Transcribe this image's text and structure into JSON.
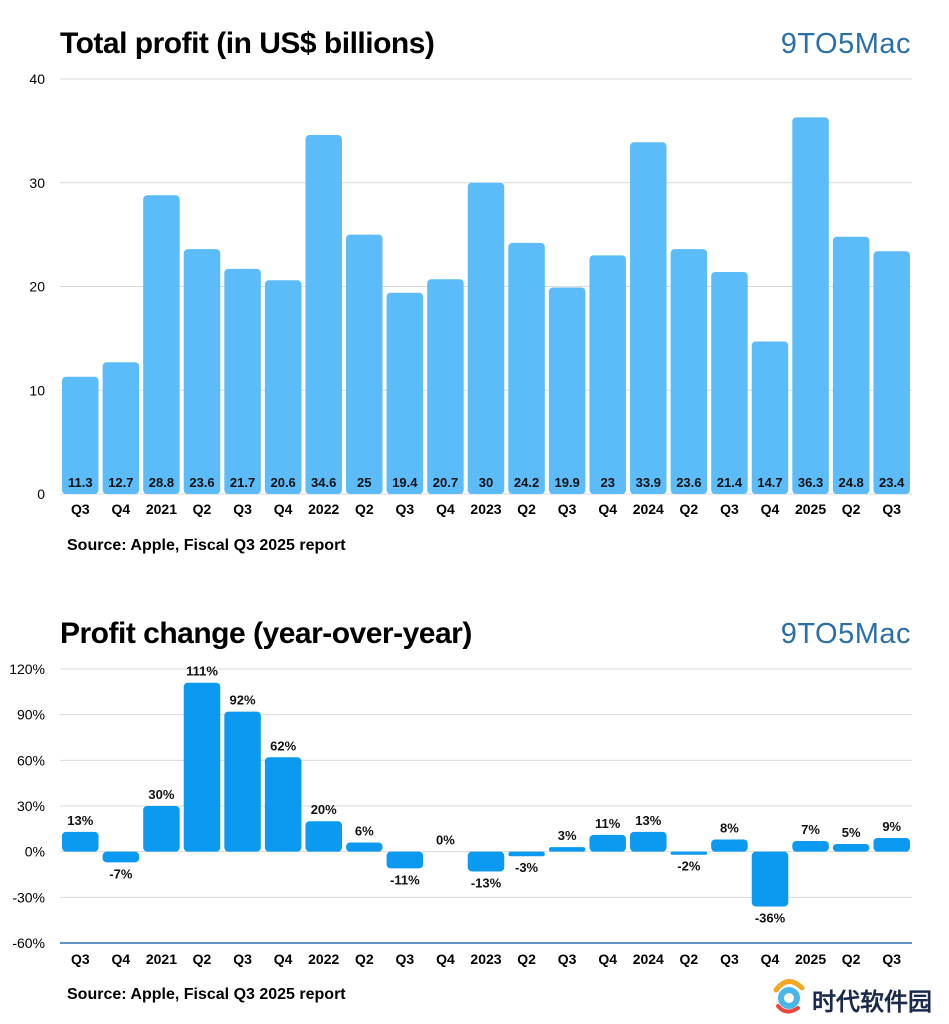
{
  "branding": {
    "name": "9TO5Mac",
    "primary_color": "#5cbcf9",
    "secondary_color": "#0b9af0",
    "brand_color": "#2a6fa8"
  },
  "watermark": {
    "text": "时代软件园"
  },
  "chart_data": [
    {
      "type": "bar",
      "title": "Total profit (in US$ billions)",
      "source": "Source: Apple, Fiscal Q3 2025 report",
      "categories": [
        "Q3",
        "Q4",
        "2021",
        "Q2",
        "Q3",
        "Q4",
        "2022",
        "Q2",
        "Q3",
        "Q4",
        "2023",
        "Q2",
        "Q3",
        "Q4",
        "2024",
        "Q2",
        "Q3",
        "Q4",
        "2025",
        "Q2",
        "Q3"
      ],
      "values": [
        11.3,
        12.7,
        28.8,
        23.6,
        21.7,
        20.6,
        34.6,
        25,
        19.4,
        20.7,
        30,
        24.2,
        19.9,
        23,
        33.9,
        23.6,
        21.4,
        14.7,
        36.3,
        24.8,
        23.4
      ],
      "value_labels": [
        "11.3",
        "12.7",
        "28.8",
        "23.6",
        "21.7",
        "20.6",
        "34.6",
        "25",
        "19.4",
        "20.7",
        "30",
        "24.2",
        "19.9",
        "23",
        "33.9",
        "23.6",
        "21.4",
        "14.7",
        "36.3",
        "24.8",
        "23.4"
      ],
      "ylim": [
        0,
        40
      ],
      "yticks": [
        0,
        10,
        20,
        30,
        40
      ],
      "ytick_labels": [
        "0",
        "10",
        "20",
        "30",
        "40"
      ],
      "grid": true,
      "color": "#5cbcf9",
      "data_label_position": "inside-bottom"
    },
    {
      "type": "bar",
      "title": "Profit change (year-over-year)",
      "source": "Source: Apple, Fiscal Q3 2025 report",
      "categories": [
        "Q3",
        "Q4",
        "2021",
        "Q2",
        "Q3",
        "Q4",
        "2022",
        "Q2",
        "Q3",
        "Q4",
        "2023",
        "Q2",
        "Q3",
        "Q4",
        "2024",
        "Q2",
        "Q3",
        "Q4",
        "2025",
        "Q2",
        "Q3"
      ],
      "values": [
        13,
        -7,
        30,
        111,
        92,
        62,
        20,
        6,
        -11,
        0,
        -13,
        -3,
        3,
        11,
        13,
        -2,
        8,
        -36,
        7,
        5,
        9
      ],
      "value_labels": [
        "13%",
        "-7%",
        "30%",
        "111%",
        "92%",
        "62%",
        "20%",
        "6%",
        "-11%",
        "0%",
        "-13%",
        "-3%",
        "3%",
        "11%",
        "13%",
        "-2%",
        "8%",
        "-36%",
        "7%",
        "5%",
        "9%"
      ],
      "ylim": [
        -60,
        120
      ],
      "yticks": [
        -60,
        -30,
        0,
        30,
        60,
        90,
        120
      ],
      "ytick_labels": [
        "-60%",
        "-30%",
        "0%",
        "30%",
        "60%",
        "90%",
        "120%"
      ],
      "grid": true,
      "color": "#0b9af0",
      "data_label_position": "outside-end"
    }
  ]
}
